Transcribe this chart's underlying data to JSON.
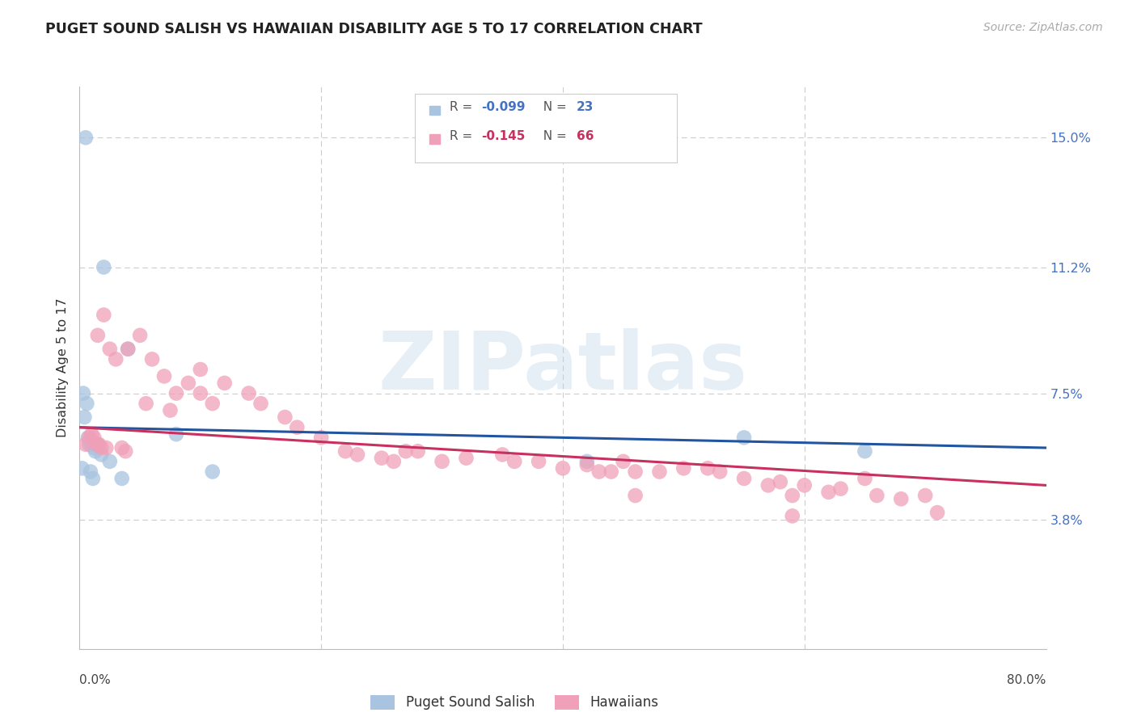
{
  "title": "PUGET SOUND SALISH VS HAWAIIAN DISABILITY AGE 5 TO 17 CORRELATION CHART",
  "source": "Source: ZipAtlas.com",
  "ylabel": "Disability Age 5 to 17",
  "yticks": [
    3.8,
    7.5,
    11.2,
    15.0
  ],
  "ytick_labels": [
    "3.8%",
    "7.5%",
    "11.2%",
    "15.0%"
  ],
  "legend_label1": "Puget Sound Salish",
  "legend_label2": "Hawaiians",
  "color_blue": "#a8c4e0",
  "color_pink": "#f0a0b8",
  "line_blue": "#2255a0",
  "line_pink": "#c83060",
  "watermark": "ZIPatlas",
  "blue_x": [
    0.5,
    2.0,
    4.0,
    0.3,
    0.4,
    0.6,
    0.7,
    0.8,
    1.0,
    1.2,
    1.3,
    1.5,
    1.8,
    2.5,
    0.2,
    0.9,
    1.1,
    55.0,
    42.0,
    65.0,
    8.0,
    3.5,
    11.0
  ],
  "blue_y": [
    15.0,
    11.2,
    8.8,
    7.5,
    6.8,
    7.2,
    6.2,
    6.0,
    6.0,
    5.9,
    5.8,
    6.0,
    5.7,
    5.5,
    5.3,
    5.2,
    5.0,
    6.2,
    5.5,
    5.8,
    6.3,
    5.0,
    5.2
  ],
  "pink_x": [
    1.0,
    1.5,
    2.0,
    2.5,
    3.0,
    4.0,
    5.0,
    6.0,
    7.0,
    8.0,
    9.0,
    10.0,
    11.0,
    12.0,
    14.0,
    15.0,
    17.0,
    18.0,
    20.0,
    22.0,
    23.0,
    25.0,
    26.0,
    27.0,
    28.0,
    30.0,
    32.0,
    35.0,
    36.0,
    38.0,
    40.0,
    42.0,
    43.0,
    45.0,
    46.0,
    48.0,
    50.0,
    52.0,
    53.0,
    55.0,
    57.0,
    58.0,
    59.0,
    60.0,
    62.0,
    63.0,
    65.0,
    66.0,
    68.0,
    70.0,
    71.0,
    0.5,
    0.8,
    1.2,
    1.4,
    1.6,
    1.8,
    2.2,
    3.5,
    3.8,
    5.5,
    7.5,
    10.0,
    44.0,
    46.0,
    59.0
  ],
  "pink_y": [
    6.3,
    9.2,
    9.8,
    8.8,
    8.5,
    8.8,
    9.2,
    8.5,
    8.0,
    7.5,
    7.8,
    8.2,
    7.2,
    7.8,
    7.5,
    7.2,
    6.8,
    6.5,
    6.2,
    5.8,
    5.7,
    5.6,
    5.5,
    5.8,
    5.8,
    5.5,
    5.6,
    5.7,
    5.5,
    5.5,
    5.3,
    5.4,
    5.2,
    5.5,
    5.2,
    5.2,
    5.3,
    5.3,
    5.2,
    5.0,
    4.8,
    4.9,
    4.5,
    4.8,
    4.6,
    4.7,
    5.0,
    4.5,
    4.4,
    4.5,
    4.0,
    6.0,
    6.2,
    6.2,
    6.0,
    6.0,
    5.9,
    5.9,
    5.9,
    5.8,
    7.2,
    7.0,
    7.5,
    5.2,
    4.5,
    3.9
  ],
  "blue_line_x": [
    0,
    80
  ],
  "blue_line_y": [
    6.5,
    5.9
  ],
  "pink_line_x": [
    0,
    80
  ],
  "pink_line_y": [
    6.5,
    4.8
  ],
  "xmin": 0.0,
  "xmax": 80.0,
  "ymin": 0.0,
  "ymax": 16.5
}
